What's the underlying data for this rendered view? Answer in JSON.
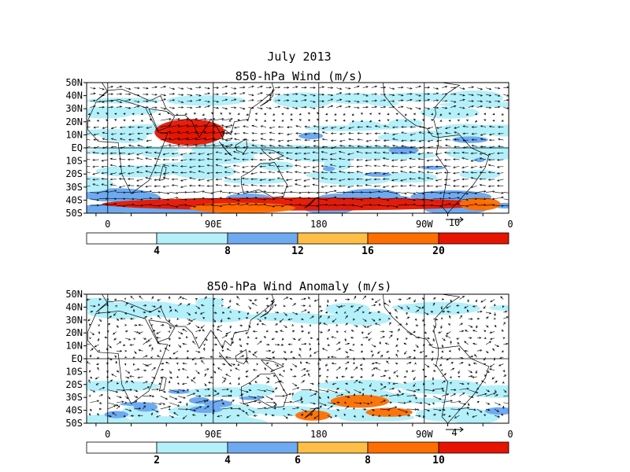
{
  "figure": {
    "title": "July 2013",
    "panels": [
      {
        "id": "wind",
        "title": "850-hPa Wind (m/s)",
        "lat_labels": [
          "50N",
          "40N",
          "30N",
          "20N",
          "10N",
          "EQ",
          "10S",
          "20S",
          "30S",
          "40S",
          "50S"
        ],
        "lon_labels": [
          "0",
          "90E",
          "180",
          "90W",
          "0"
        ],
        "ref_vector_label": "10",
        "colorbar": {
          "labels": [
            "4",
            "8",
            "12",
            "16",
            "20"
          ],
          "colors": [
            "#ffffff",
            "#b4f0fa",
            "#6eaaf0",
            "#ffbe46",
            "#ff6e00",
            "#e61400"
          ]
        },
        "shaded_regions": [
          {
            "lon": [
              40,
              100
            ],
            "lat": [
              2,
              22
            ],
            "level": 5
          },
          {
            "lon": [
              50,
              90
            ],
            "lat": [
              6,
              18
            ],
            "level": 6
          },
          {
            "lon": [
              -30,
              -5
            ],
            "lat": [
              -48,
              -38
            ],
            "level": 5
          },
          {
            "lon": [
              70,
              160
            ],
            "lat": [
              -50,
              -42
            ],
            "level": 4
          },
          {
            "lon": [
              -60,
              -25
            ],
            "lat": [
              -48,
              -38
            ],
            "level": 4
          }
        ]
      },
      {
        "id": "anomaly",
        "title": "850-hPa Wind Anomaly (m/s)",
        "lat_labels": [
          "50N",
          "40N",
          "30N",
          "20N",
          "10N",
          "EQ",
          "10S",
          "20S",
          "30S",
          "40S",
          "50S"
        ],
        "lon_labels": [
          "0",
          "90E",
          "180",
          "90W",
          "0"
        ],
        "ref_vector_label": "4",
        "colorbar": {
          "labels": [
            "2",
            "4",
            "6",
            "8",
            "10"
          ],
          "colors": [
            "#ffffff",
            "#b4f0fa",
            "#6eaaf0",
            "#ffbe46",
            "#ff6e00",
            "#e61400"
          ]
        },
        "shaded_regions": [
          {
            "lon": [
              -170,
              -120
            ],
            "lat": [
              -38,
              -28
            ],
            "level": 4
          },
          {
            "lon": [
              -140,
              -100
            ],
            "lat": [
              -45,
              -38
            ],
            "level": 4
          },
          {
            "lon": [
              160,
              190
            ],
            "lat": [
              -48,
              -40
            ],
            "level": 4
          }
        ]
      }
    ]
  }
}
